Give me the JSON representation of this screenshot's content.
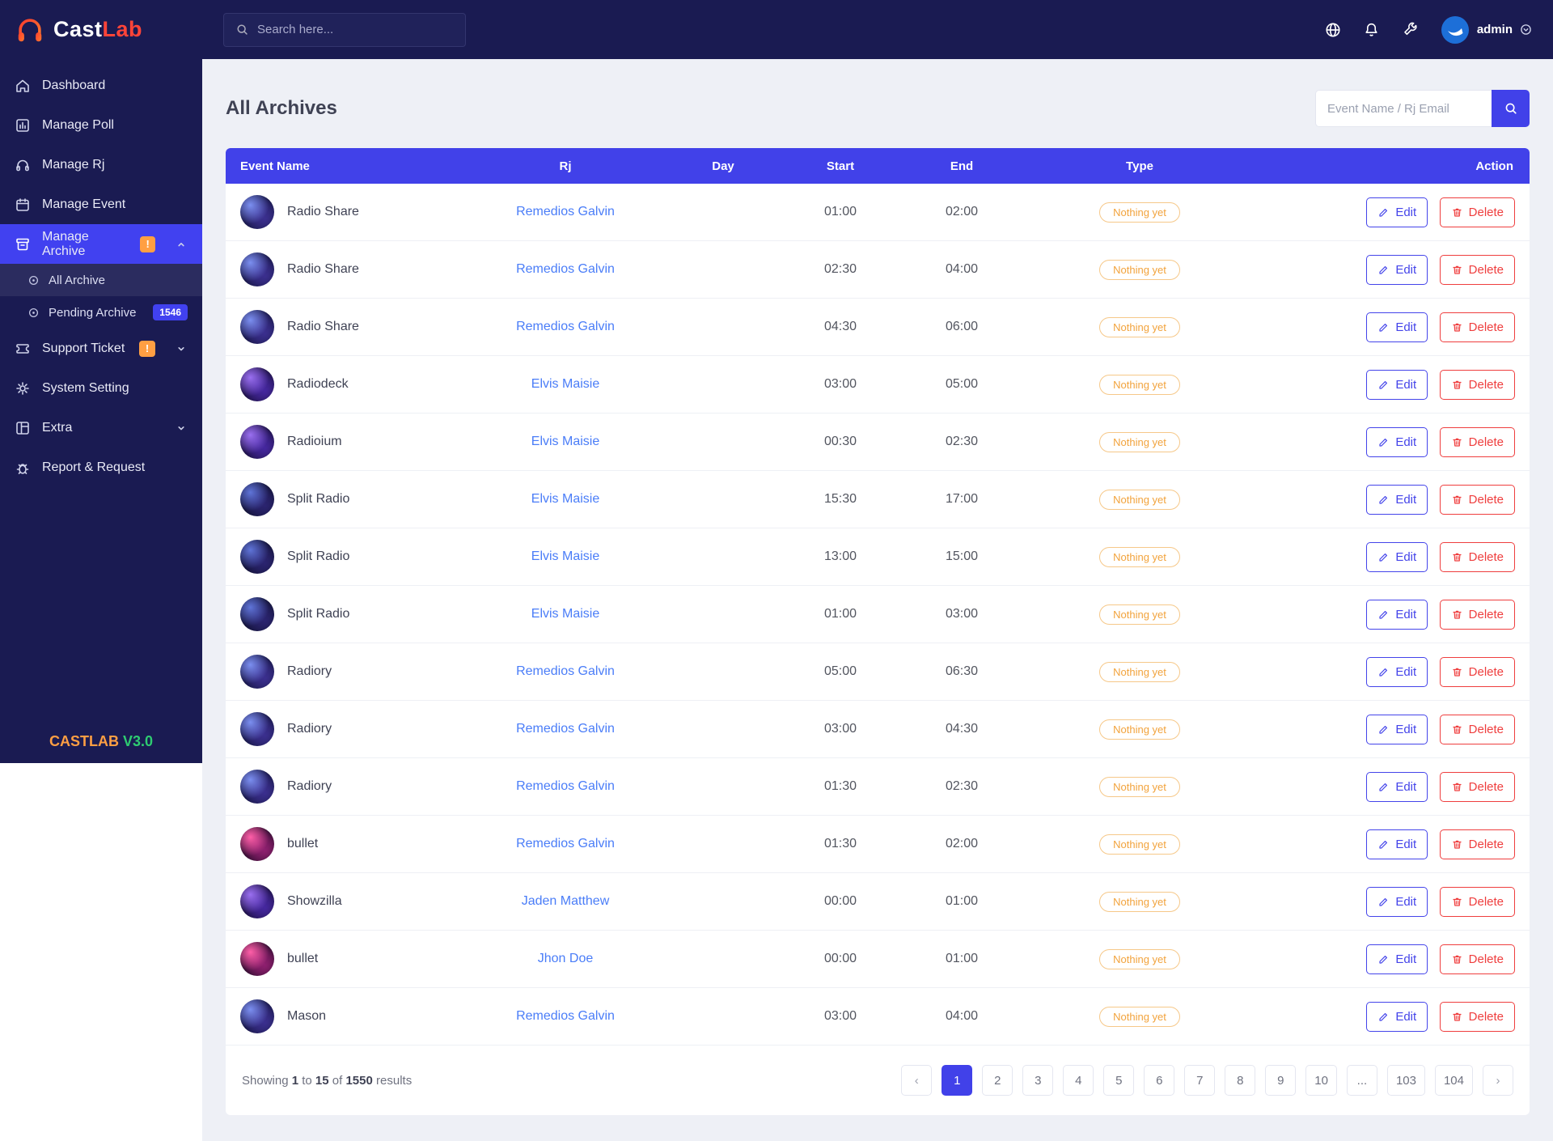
{
  "brand": {
    "name_primary": "Cast",
    "name_secondary": "Lab"
  },
  "topbar": {
    "search_placeholder": "Search here...",
    "username": "admin"
  },
  "sidebar": {
    "items": [
      {
        "label": "Dashboard"
      },
      {
        "label": "Manage Poll"
      },
      {
        "label": "Manage Rj"
      },
      {
        "label": "Manage Event"
      },
      {
        "label": "Manage Archive",
        "badge": "!",
        "children": [
          {
            "label": "All Archive"
          },
          {
            "label": "Pending Archive",
            "badge": "1546"
          }
        ]
      },
      {
        "label": "Support Ticket",
        "badge": "!"
      },
      {
        "label": "System Setting"
      },
      {
        "label": "Extra"
      },
      {
        "label": "Report & Request"
      }
    ],
    "version": {
      "brand": "CASTLAB",
      "number": "V3.0"
    }
  },
  "main": {
    "title": "All Archives",
    "filter": {
      "placeholder": "Event Name / Rj Email"
    },
    "table": {
      "headers": [
        "Event Name",
        "Rj",
        "Day",
        "Start",
        "End",
        "Type",
        "Action"
      ],
      "actions": {
        "edit": "Edit",
        "delete": "Delete"
      },
      "rows": [
        {
          "event": "Radio Share",
          "rj": "Remedios Galvin",
          "day": "",
          "start": "01:00",
          "end": "02:00",
          "type": "Nothing yet",
          "avatar": "blue"
        },
        {
          "event": "Radio Share",
          "rj": "Remedios Galvin",
          "day": "",
          "start": "02:30",
          "end": "04:00",
          "type": "Nothing yet",
          "avatar": "blue"
        },
        {
          "event": "Radio Share",
          "rj": "Remedios Galvin",
          "day": "",
          "start": "04:30",
          "end": "06:00",
          "type": "Nothing yet",
          "avatar": "blue"
        },
        {
          "event": "Radiodeck",
          "rj": "Elvis Maisie",
          "day": "",
          "start": "03:00",
          "end": "05:00",
          "type": "Nothing yet",
          "avatar": "purple"
        },
        {
          "event": "Radioium",
          "rj": "Elvis Maisie",
          "day": "",
          "start": "00:30",
          "end": "02:30",
          "type": "Nothing yet",
          "avatar": "purple"
        },
        {
          "event": "Split Radio",
          "rj": "Elvis Maisie",
          "day": "",
          "start": "15:30",
          "end": "17:00",
          "type": "Nothing yet",
          "avatar": "darkblue"
        },
        {
          "event": "Split Radio",
          "rj": "Elvis Maisie",
          "day": "",
          "start": "13:00",
          "end": "15:00",
          "type": "Nothing yet",
          "avatar": "darkblue"
        },
        {
          "event": "Split Radio",
          "rj": "Elvis Maisie",
          "day": "",
          "start": "01:00",
          "end": "03:00",
          "type": "Nothing yet",
          "avatar": "darkblue"
        },
        {
          "event": "Radiory",
          "rj": "Remedios Galvin",
          "day": "",
          "start": "05:00",
          "end": "06:30",
          "type": "Nothing yet",
          "avatar": "blue"
        },
        {
          "event": "Radiory",
          "rj": "Remedios Galvin",
          "day": "",
          "start": "03:00",
          "end": "04:30",
          "type": "Nothing yet",
          "avatar": "blue"
        },
        {
          "event": "Radiory",
          "rj": "Remedios Galvin",
          "day": "",
          "start": "01:30",
          "end": "02:30",
          "type": "Nothing yet",
          "avatar": "blue"
        },
        {
          "event": "bullet",
          "rj": "Remedios Galvin",
          "day": "",
          "start": "01:30",
          "end": "02:00",
          "type": "Nothing yet",
          "avatar": "pink"
        },
        {
          "event": "Showzilla",
          "rj": "Jaden Matthew",
          "day": "",
          "start": "00:00",
          "end": "01:00",
          "type": "Nothing yet",
          "avatar": "purple"
        },
        {
          "event": "bullet",
          "rj": "Jhon Doe",
          "day": "",
          "start": "00:00",
          "end": "01:00",
          "type": "Nothing yet",
          "avatar": "pink"
        },
        {
          "event": "Mason",
          "rj": "Remedios Galvin",
          "day": "",
          "start": "03:00",
          "end": "04:00",
          "type": "Nothing yet",
          "avatar": "blue"
        }
      ]
    },
    "footer": {
      "showing": "Showing",
      "from": "1",
      "to_word": "to",
      "to": "15",
      "of_word": "of",
      "total": "1550",
      "results_word": "results"
    },
    "pagination": {
      "items": [
        {
          "label": "‹",
          "type": "prev"
        },
        {
          "label": "1",
          "active": true
        },
        {
          "label": "2"
        },
        {
          "label": "3"
        },
        {
          "label": "4"
        },
        {
          "label": "5"
        },
        {
          "label": "6"
        },
        {
          "label": "7"
        },
        {
          "label": "8"
        },
        {
          "label": "9"
        },
        {
          "label": "10"
        },
        {
          "label": "..."
        },
        {
          "label": "103"
        },
        {
          "label": "104"
        },
        {
          "label": "›",
          "type": "next"
        }
      ]
    }
  },
  "colors": {
    "accent": "#4141e9",
    "navy": "#1a1b52",
    "danger": "#ef3e3e",
    "warning": "#f2a33c",
    "badge_orange": "#ff9f43",
    "link": "#4a7df8",
    "version_green": "#2ecc71",
    "logo_red": "#ff4438"
  },
  "avatars": {
    "blue": [
      "#7b8ff0",
      "#3b2f8f",
      "#14153f"
    ],
    "purple": [
      "#9a6ff0",
      "#45279f",
      "#180f38"
    ],
    "darkblue": [
      "#5f74d8",
      "#2b2470",
      "#101130"
    ],
    "pink": [
      "#ff5fa8",
      "#8f1f6f",
      "#250b28"
    ]
  }
}
